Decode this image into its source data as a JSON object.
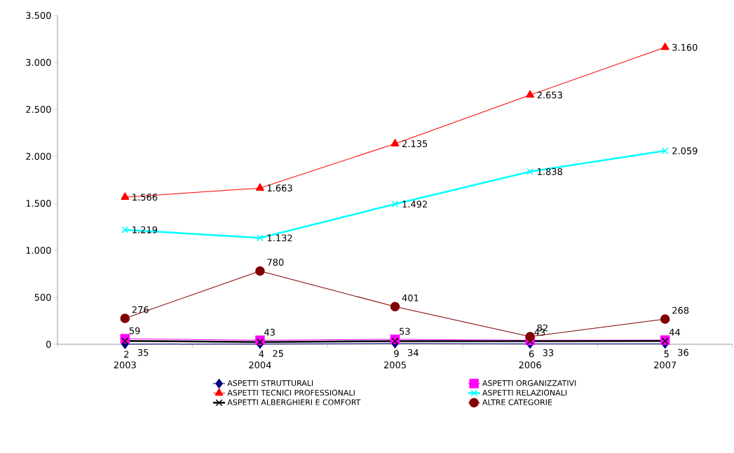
{
  "chart_data": {
    "type": "line",
    "categories": [
      "2003",
      "2004",
      "2005",
      "2006",
      "2007"
    ],
    "series": [
      {
        "name": "ASPETTI STRUTTURALI",
        "color": "#000080",
        "marker": "diamond",
        "values": [
          2,
          4,
          9,
          6,
          5
        ],
        "value_labels": [
          "2",
          "4",
          "9",
          "6",
          "5"
        ]
      },
      {
        "name": "ASPETTI ORGANIZZATIVI",
        "color": "#ff00ff",
        "marker": "square",
        "values": [
          59,
          43,
          53,
          43,
          44
        ],
        "value_labels": [
          "59",
          "43",
          "53",
          "43",
          "44"
        ]
      },
      {
        "name": "ASPETTI TECNICI PROFESSIONALI",
        "color": "#ff0000",
        "marker": "triangle",
        "values": [
          1566,
          1663,
          2135,
          2653,
          3160
        ],
        "value_labels": [
          "1.566",
          "1.663",
          "2.135",
          "2.653",
          "3.160"
        ]
      },
      {
        "name": "ASPETTI RELAZIONALI",
        "color": "#00ffff",
        "marker": "cross",
        "values": [
          1219,
          1132,
          1492,
          1838,
          2059
        ],
        "value_labels": [
          "1.219",
          "1.132",
          "1.492",
          "1.838",
          "2.059"
        ]
      },
      {
        "name": "ASPETTI ALBERGHIERI E COMFORT",
        "color": "#000000",
        "marker": "cross",
        "values": [
          35,
          25,
          34,
          33,
          36
        ],
        "value_labels": [
          "35",
          "25",
          "34",
          "33",
          "36"
        ]
      },
      {
        "name": "ALTRE CATEGORIE",
        "color": "#800000",
        "marker": "circle",
        "values": [
          276,
          780,
          401,
          82,
          268
        ],
        "value_labels": [
          "276",
          "780",
          "401",
          "82",
          "268"
        ]
      }
    ],
    "ylim": [
      0,
      3500
    ],
    "yticks": [
      {
        "value": 0,
        "label": "0"
      },
      {
        "value": 500,
        "label": "500"
      },
      {
        "value": 1000,
        "label": "1.000"
      },
      {
        "value": 1500,
        "label": "1.500"
      },
      {
        "value": 2000,
        "label": "2.000"
      },
      {
        "value": 2500,
        "label": "2.500"
      },
      {
        "value": 3000,
        "label": "3.000"
      },
      {
        "value": 3500,
        "label": "3.500"
      }
    ],
    "grid": false,
    "legend": "bottom",
    "line_style": "solid"
  }
}
